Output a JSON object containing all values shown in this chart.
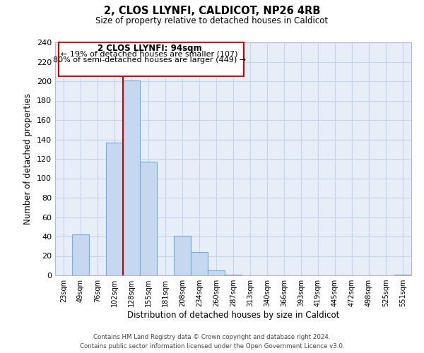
{
  "title": "2, CLOS LLYNFI, CALDICOT, NP26 4RB",
  "subtitle": "Size of property relative to detached houses in Caldicot",
  "xlabel": "Distribution of detached houses by size in Caldicot",
  "ylabel": "Number of detached properties",
  "bar_labels": [
    "23sqm",
    "49sqm",
    "76sqm",
    "102sqm",
    "128sqm",
    "155sqm",
    "181sqm",
    "208sqm",
    "234sqm",
    "260sqm",
    "287sqm",
    "313sqm",
    "340sqm",
    "366sqm",
    "393sqm",
    "419sqm",
    "445sqm",
    "472sqm",
    "498sqm",
    "525sqm",
    "551sqm"
  ],
  "bar_values": [
    0,
    42,
    0,
    137,
    201,
    117,
    0,
    41,
    24,
    5,
    1,
    0,
    0,
    0,
    0,
    0,
    0,
    0,
    0,
    0,
    1
  ],
  "bar_color": "#c5d8f0",
  "bar_edge_color": "#7aaad4",
  "vline_color": "#cc0000",
  "annotation_text_line1": "2 CLOS LLYNFI: 94sqm",
  "annotation_text_line2": "← 19% of detached houses are smaller (107)",
  "annotation_text_line3": "80% of semi-detached houses are larger (449) →",
  "ylim": [
    0,
    240
  ],
  "yticks": [
    0,
    20,
    40,
    60,
    80,
    100,
    120,
    140,
    160,
    180,
    200,
    220,
    240
  ],
  "footer_line1": "Contains HM Land Registry data © Crown copyright and database right 2024.",
  "footer_line2": "Contains public sector information licensed under the Open Government Licence v3.0.",
  "background_color": "#ffffff",
  "grid_color": "#c8d4e8"
}
